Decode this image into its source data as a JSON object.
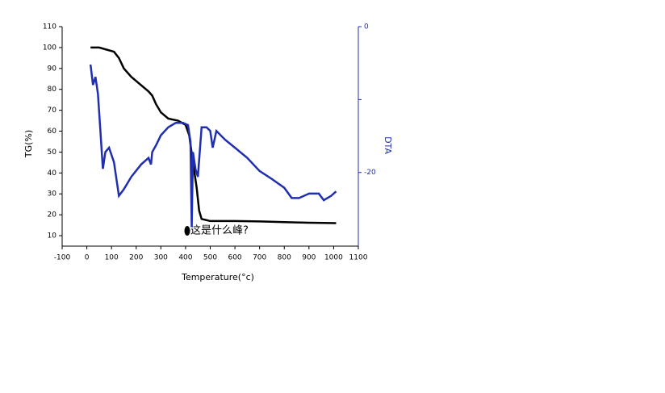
{
  "chart_data": {
    "type": "line",
    "xlabel": "Temperature(°c)",
    "ylabel": "TG(%)",
    "y2label": "DTA",
    "annotation": "这是什么峰?",
    "xlim": [
      -100,
      1100
    ],
    "xticks": [
      -100,
      0,
      100,
      200,
      300,
      400,
      500,
      600,
      700,
      800,
      900,
      1000,
      1100
    ],
    "ylim": [
      5,
      110
    ],
    "yticks": [
      10,
      20,
      30,
      40,
      50,
      60,
      70,
      80,
      90,
      100,
      110
    ],
    "y2lim": [
      -30.1,
      0
    ],
    "y2ticks": [
      0,
      {
        "value": -10,
        "label": null
      },
      -20
    ],
    "series": [
      {
        "name": "TG",
        "color": "#000000",
        "x": [
          15,
          50,
          80,
          110,
          130,
          150,
          180,
          220,
          250,
          265,
          280,
          300,
          330,
          370,
          400,
          415,
          430,
          445,
          455,
          465,
          500,
          600,
          700,
          800,
          900,
          1010
        ],
        "values": [
          100,
          100,
          99,
          98,
          95,
          90,
          86,
          82,
          79,
          77,
          73,
          69,
          66,
          65,
          63,
          58,
          45,
          33,
          22,
          18,
          17,
          17,
          16.8,
          16.5,
          16.2,
          16
        ]
      },
      {
        "name": "DTA",
        "color": "#1f2fb0",
        "axis": "y2",
        "x": [
          15,
          25,
          35,
          45,
          55,
          65,
          75,
          90,
          110,
          130,
          150,
          180,
          220,
          250,
          260,
          265,
          280,
          300,
          330,
          360,
          390,
          410,
          420,
          425,
          430,
          440,
          450,
          465,
          485,
          500,
          510,
          525,
          560,
          600,
          650,
          700,
          750,
          800,
          830,
          860,
          900,
          940,
          960,
          990,
          1010
        ],
        "values": [
          -5.2,
          -8.0,
          -6.9,
          -9.2,
          -14.3,
          -19.5,
          -17.2,
          -16.6,
          -18.6,
          -23.2,
          -22.3,
          -20.6,
          -18.9,
          -18.0,
          -18.9,
          -17.2,
          -16.3,
          -14.9,
          -13.8,
          -13.2,
          -13.2,
          -13.5,
          -15.8,
          -27.5,
          -17.2,
          -19.5,
          -20.6,
          -13.8,
          -13.8,
          -14.3,
          -16.6,
          -14.3,
          -15.5,
          -16.6,
          -18.0,
          -19.8,
          -20.9,
          -22.1,
          -23.5,
          -23.5,
          -22.9,
          -22.9,
          -23.8,
          -23.2,
          -22.6
        ]
      }
    ]
  }
}
